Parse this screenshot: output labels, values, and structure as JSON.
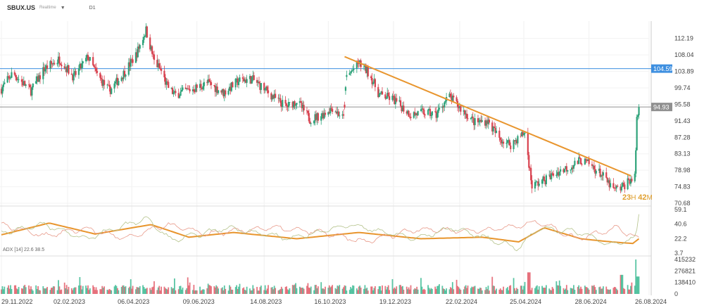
{
  "header": {
    "symbol": "SBUX.US",
    "source": "Realtime",
    "timeframe": "D1"
  },
  "countdown": {
    "hours": "23",
    "h_unit": "H",
    "minutes": "42",
    "m_unit": "M"
  },
  "adx_label": "ADX [14]  22.6  38.5",
  "chart_data": {
    "type": "candlestick",
    "title": "",
    "price_axis": {
      "ticks": [
        "112.19",
        "108.04",
        "103.89",
        "99.74",
        "95.58",
        "91.43",
        "87.28",
        "83.13",
        "78.98",
        "74.83",
        "70.68"
      ],
      "ylim": [
        70.68,
        115.5
      ]
    },
    "x_ticks": [
      "29.11.2022",
      "02.02.2023",
      "06.04.2023",
      "09.06.2023",
      "14.08.2023",
      "16.10.2023",
      "19.12.2023",
      "22.02.2024",
      "25.04.2024",
      "28.06.2024",
      "26.08.2024"
    ],
    "horizontal_lines": [
      {
        "label": "104.59",
        "value": 104.59,
        "color": "#3d8fe0"
      },
      {
        "label": "94.93",
        "value": 94.93,
        "color": "#909090"
      }
    ],
    "trend_line": {
      "color": "#e8952d",
      "points": [
        [
          "2023-11-01",
          107.6
        ],
        [
          "2024-08-08",
          77.6
        ]
      ]
    },
    "price_keypoints": [
      [
        "2022-11-29",
        99.5
      ],
      [
        "2022-12-10",
        103.5
      ],
      [
        "2022-12-28",
        99.0
      ],
      [
        "2023-01-10",
        104.5
      ],
      [
        "2023-01-25",
        107.0
      ],
      [
        "2023-02-08",
        102.5
      ],
      [
        "2023-02-22",
        107.5
      ],
      [
        "2023-03-03",
        103.0
      ],
      [
        "2023-03-15",
        99.0
      ],
      [
        "2023-03-28",
        103.0
      ],
      [
        "2023-04-10",
        108.0
      ],
      [
        "2023-04-20",
        114.3
      ],
      [
        "2023-04-28",
        106.5
      ],
      [
        "2023-05-05",
        104.0
      ],
      [
        "2023-05-10",
        100.5
      ],
      [
        "2023-05-18",
        98.0
      ],
      [
        "2023-06-05",
        99.5
      ],
      [
        "2023-06-20",
        101.0
      ],
      [
        "2023-07-05",
        98.5
      ],
      [
        "2023-07-20",
        101.5
      ],
      [
        "2023-08-02",
        102.0
      ],
      [
        "2023-08-14",
        99.5
      ],
      [
        "2023-08-25",
        97.0
      ],
      [
        "2023-09-05",
        95.0
      ],
      [
        "2023-09-15",
        96.5
      ],
      [
        "2023-09-28",
        91.8
      ],
      [
        "2023-10-10",
        93.0
      ],
      [
        "2023-10-20",
        94.8
      ],
      [
        "2023-10-31",
        92.0
      ],
      [
        "2023-11-03",
        102.5
      ],
      [
        "2023-11-15",
        106.0
      ],
      [
        "2023-11-25",
        103.5
      ],
      [
        "2023-12-05",
        98.0
      ],
      [
        "2023-12-18",
        97.0
      ],
      [
        "2024-01-05",
        93.0
      ],
      [
        "2024-01-18",
        93.5
      ],
      [
        "2024-01-30",
        93.0
      ],
      [
        "2024-02-05",
        95.5
      ],
      [
        "2024-02-12",
        97.5
      ],
      [
        "2024-02-25",
        94.0
      ],
      [
        "2024-03-08",
        91.0
      ],
      [
        "2024-03-20",
        91.5
      ],
      [
        "2024-04-01",
        87.0
      ],
      [
        "2024-04-12",
        85.5
      ],
      [
        "2024-04-26",
        88.5
      ],
      [
        "2024-05-03",
        75.0
      ],
      [
        "2024-05-15",
        76.5
      ],
      [
        "2024-05-28",
        78.5
      ],
      [
        "2024-06-10",
        80.0
      ],
      [
        "2024-06-20",
        81.5
      ],
      [
        "2024-06-28",
        80.5
      ],
      [
        "2024-07-10",
        78.0
      ],
      [
        "2024-07-22",
        74.0
      ],
      [
        "2024-07-30",
        74.5
      ],
      [
        "2024-08-06",
        76.5
      ],
      [
        "2024-08-12",
        77.0
      ],
      [
        "2024-08-14",
        92.0
      ],
      [
        "2024-08-16",
        94.9
      ]
    ],
    "gap": [
      "2023-10-31",
      "2023-11-03"
    ],
    "adx": {
      "axis_ticks": [
        "59.1",
        "40.6",
        "22.2",
        "3.7"
      ],
      "ylim": [
        3.7,
        59.1
      ],
      "lines": [
        {
          "color": "#e8952d",
          "width": 2.0,
          "keypoints": [
            [
              "2022-11-29",
              27
            ],
            [
              "2023-01-15",
              42
            ],
            [
              "2023-03-01",
              28
            ],
            [
              "2023-04-25",
              40
            ],
            [
              "2023-06-01",
              24
            ],
            [
              "2023-07-15",
              30
            ],
            [
              "2023-09-15",
              22
            ],
            [
              "2023-11-15",
              30
            ],
            [
              "2024-01-15",
              22
            ],
            [
              "2024-03-15",
              24
            ],
            [
              "2024-04-20",
              18
            ],
            [
              "2024-05-15",
              36
            ],
            [
              "2024-06-20",
              22
            ],
            [
              "2024-07-20",
              18
            ],
            [
              "2024-08-10",
              16
            ],
            [
              "2024-08-16",
              22
            ]
          ]
        },
        {
          "color": "#e89a8a",
          "width": 0.8,
          "keypoints": [
            [
              "2022-11-29",
              40
            ],
            [
              "2023-01-10",
              26
            ],
            [
              "2023-02-20",
              35
            ],
            [
              "2023-04-01",
              22
            ],
            [
              "2023-05-10",
              40
            ],
            [
              "2023-06-20",
              28
            ],
            [
              "2023-08-20",
              36
            ],
            [
              "2023-10-10",
              30
            ],
            [
              "2023-11-20",
              18
            ],
            [
              "2024-01-10",
              34
            ],
            [
              "2024-03-10",
              32
            ],
            [
              "2024-04-20",
              38
            ],
            [
              "2024-05-10",
              44
            ],
            [
              "2024-06-15",
              22
            ],
            [
              "2024-07-25",
              36
            ],
            [
              "2024-08-16",
              22
            ]
          ]
        },
        {
          "color": "#b4c28a",
          "width": 0.8,
          "keypoints": [
            [
              "2022-11-29",
              30
            ],
            [
              "2023-01-10",
              40
            ],
            [
              "2023-02-20",
              22
            ],
            [
              "2023-04-20",
              48
            ],
            [
              "2023-05-15",
              20
            ],
            [
              "2023-07-10",
              36
            ],
            [
              "2023-09-10",
              22
            ],
            [
              "2023-11-05",
              40
            ],
            [
              "2024-01-10",
              22
            ],
            [
              "2024-02-15",
              36
            ],
            [
              "2024-04-20",
              10
            ],
            [
              "2024-05-10",
              36
            ],
            [
              "2024-06-20",
              30
            ],
            [
              "2024-07-20",
              14
            ],
            [
              "2024-08-13",
              22
            ],
            [
              "2024-08-16",
              55
            ]
          ]
        }
      ]
    },
    "volume": {
      "axis_ticks": [
        "415232",
        "276821",
        "138410",
        "0"
      ],
      "ylim": [
        0,
        415232
      ],
      "up_color": "#3dbb94",
      "down_color": "#e35d6a"
    }
  }
}
